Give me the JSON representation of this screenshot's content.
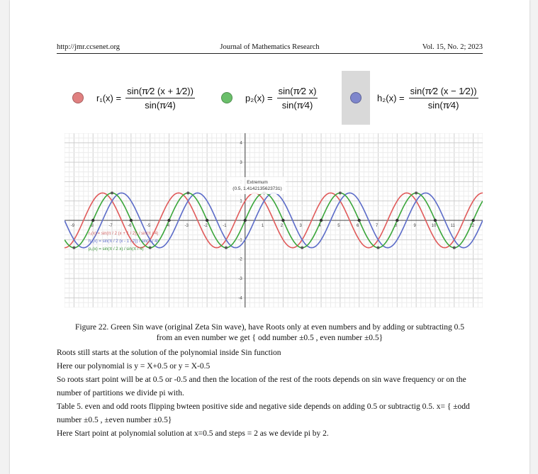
{
  "header": {
    "left": "http://jmr.ccsenet.org",
    "center": "Journal of Mathematics Research",
    "right": "Vol. 15, No. 2; 2023"
  },
  "formulas": [
    {
      "name": "r₁(x)",
      "color": "#e08080",
      "numerator": "sin(π⁄2 (x + 1⁄2))",
      "denominator": "sin(π⁄4)"
    },
    {
      "name": "p₂(x)",
      "color": "#6abf6a",
      "numerator": "sin(π⁄2 x)",
      "denominator": "sin(π⁄4)"
    },
    {
      "name": "h₂(x)",
      "color": "#7e86cc",
      "numerator": "sin(π⁄2 (x − 1⁄2))",
      "denominator": "sin(π⁄4)"
    }
  ],
  "chart_data": {
    "type": "line",
    "xlim": [
      -9.5,
      12.5
    ],
    "ylim": [
      -4.5,
      4.5
    ],
    "grid": true,
    "x_ticks": [
      "-9",
      "-8",
      "-7",
      "-6",
      "-5",
      "-4",
      "-3",
      "-2",
      "-1",
      "",
      "1",
      "2",
      "3",
      "4",
      "5",
      "6",
      "7",
      "8",
      "9",
      "10",
      "11",
      "12"
    ],
    "y_ticks": [
      "-4",
      "-3",
      "-2",
      "-1",
      "1",
      "2",
      "3",
      "4"
    ],
    "series": [
      {
        "name": "r₁(x) = sin(π / 2 (x + 1 / 2)) / sin(π / 4)",
        "color": "#e05a5a",
        "shift": 0.5
      },
      {
        "name": "h₂(x) = sin(π / 2 (x - 1 / 2)) / sin(π / 4)",
        "color": "#5b6bc8",
        "shift": -0.5
      },
      {
        "name": "p₂(x) = sin(π / 2 x) / sin(π / 4)",
        "color": "#3aa63a",
        "shift": 0
      }
    ],
    "annotation": {
      "title": "Extremum",
      "text": "(0.5, 1.4142135623731)"
    }
  },
  "caption": {
    "line1": "Figure 22. Green Sin wave (original Zeta Sin wave), have Roots only at even numbers and by adding or subtracting 0.5",
    "line2": "from an even number we get { odd number ±0.5 , even number ±0.5}"
  },
  "paragraphs": [
    "Roots still starts at the solution of the polynomial inside Sin function",
    "Here our polynomial is y = X+0.5 or y = X-0.5",
    "So roots start point will be at 0.5 or -0.5 and then the location of the rest of the roots depends on sin wave frequency or on the number of partitions we divide pi with.",
    "Table 5. even and odd roots flipping bwteen positive side and negative side depends on adding 0.5 or subtractig 0.5. x= { ±odd number ±0.5 , ±even number ±0.5}",
    "Here Start point at polynomial solution at x=0.5 and steps = 2 as we devide pi by 2."
  ]
}
